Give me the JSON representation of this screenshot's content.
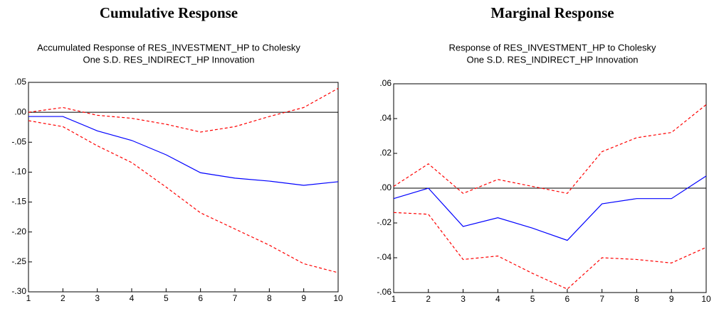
{
  "chart_data": [
    {
      "type": "line",
      "heading": "Cumulative Response",
      "title_lines": [
        "Accumulated Response of RES_INVESTMENT_HP to Cholesky",
        "One S.D. RES_INDIRECT_HP Innovation"
      ],
      "x": [
        1,
        2,
        3,
        4,
        5,
        6,
        7,
        8,
        9,
        10
      ],
      "xlim": [
        1,
        10
      ],
      "xticks": [
        1,
        2,
        3,
        4,
        5,
        6,
        7,
        8,
        9,
        10
      ],
      "ylim": [
        -0.3,
        0.05
      ],
      "yticks": [
        {
          "value": 0.05,
          "label": ".05"
        },
        {
          "value": 0.0,
          "label": ".00"
        },
        {
          "value": -0.05,
          "label": "-.05"
        },
        {
          "value": -0.1,
          "label": "-.10"
        },
        {
          "value": -0.15,
          "label": "-.15"
        },
        {
          "value": -0.2,
          "label": "-.20"
        },
        {
          "value": -0.25,
          "label": "-.25"
        },
        {
          "value": -0.3,
          "label": "-.30"
        }
      ],
      "zero_line": true,
      "series": [
        {
          "color": "#0000ff",
          "dashed": false,
          "values": [
            -0.007,
            -0.007,
            -0.031,
            -0.047,
            -0.071,
            -0.101,
            -0.11,
            -0.115,
            -0.122,
            -0.116
          ]
        },
        {
          "color": "#ff0000",
          "dashed": true,
          "values": [
            0.0,
            0.008,
            -0.005,
            -0.01,
            -0.02,
            -0.033,
            -0.024,
            -0.007,
            0.008,
            0.04
          ]
        },
        {
          "color": "#ff0000",
          "dashed": true,
          "values": [
            -0.014,
            -0.024,
            -0.056,
            -0.084,
            -0.125,
            -0.168,
            -0.195,
            -0.222,
            -0.253,
            -0.268
          ]
        }
      ]
    },
    {
      "type": "line",
      "heading": "Marginal Response",
      "title_lines": [
        "Response of RES_INVESTMENT_HP to Cholesky",
        "One S.D. RES_INDIRECT_HP Innovation"
      ],
      "x": [
        1,
        2,
        3,
        4,
        5,
        6,
        7,
        8,
        9,
        10
      ],
      "xlim": [
        1,
        10
      ],
      "xticks": [
        1,
        2,
        3,
        4,
        5,
        6,
        7,
        8,
        9,
        10
      ],
      "ylim": [
        -0.06,
        0.06
      ],
      "yticks": [
        {
          "value": 0.06,
          "label": ".06"
        },
        {
          "value": 0.04,
          "label": ".04"
        },
        {
          "value": 0.02,
          "label": ".02"
        },
        {
          "value": 0.0,
          "label": ".00"
        },
        {
          "value": -0.02,
          "label": "-.02"
        },
        {
          "value": -0.04,
          "label": "-.04"
        },
        {
          "value": -0.06,
          "label": "-.06"
        }
      ],
      "zero_line": true,
      "series": [
        {
          "color": "#0000ff",
          "dashed": false,
          "values": [
            -0.006,
            0.0,
            -0.022,
            -0.017,
            -0.023,
            -0.03,
            -0.009,
            -0.006,
            -0.006,
            0.007
          ]
        },
        {
          "color": "#ff0000",
          "dashed": true,
          "values": [
            0.001,
            0.014,
            -0.003,
            0.005,
            0.001,
            -0.003,
            0.021,
            0.029,
            0.032,
            0.048
          ]
        },
        {
          "color": "#ff0000",
          "dashed": true,
          "values": [
            -0.014,
            -0.015,
            -0.041,
            -0.039,
            -0.049,
            -0.058,
            -0.04,
            -0.041,
            -0.043,
            -0.034
          ]
        }
      ]
    }
  ]
}
